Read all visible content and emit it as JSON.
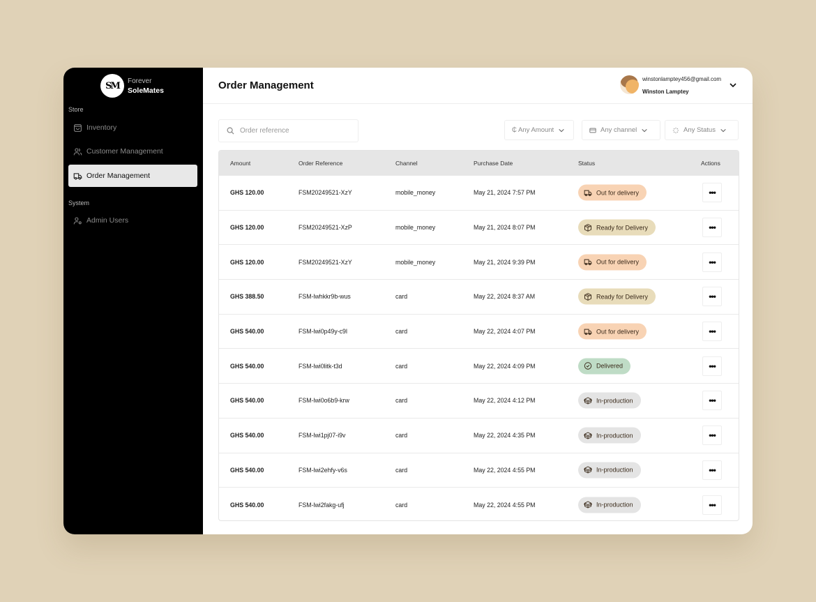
{
  "sidebar": {
    "brand_line1": "Forever",
    "brand_line2": "SoleMates",
    "logo_text": "SM",
    "sections": [
      {
        "label": "Store"
      },
      {
        "label": "System"
      }
    ],
    "items": [
      {
        "label": "Inventory",
        "icon": "shopping-bag-icon",
        "active": false
      },
      {
        "label": "Customer Management",
        "icon": "users-icon",
        "active": false
      },
      {
        "label": "Order Management",
        "icon": "truck-icon",
        "active": true
      },
      {
        "label": "Admin Users",
        "icon": "user-cog-icon",
        "active": false
      }
    ]
  },
  "header": {
    "title": "Order Management",
    "user": {
      "email": "winstonlamptey456@gmail.com",
      "name": "Winston Lamptey"
    }
  },
  "search": {
    "placeholder": "Order reference",
    "value": ""
  },
  "filters": [
    {
      "label": "₵ Any Amount",
      "icon": "cedi-icon"
    },
    {
      "label": "Any channel",
      "icon": "credit-card-icon"
    },
    {
      "label": "Any Status",
      "icon": "loader-icon"
    }
  ],
  "table": {
    "columns": [
      "Amount",
      "Order Reference",
      "Channel",
      "Purchase Date",
      "Status",
      "Actions"
    ],
    "rows": [
      {
        "amount": "GHS 120.00",
        "ref": "FSM20249521-XzY",
        "channel": "mobile_money",
        "date": "May 21, 2024 7:57 PM",
        "status": "Out for delivery"
      },
      {
        "amount": "GHS 120.00",
        "ref": "FSM20249521-XzP",
        "channel": "mobile_money",
        "date": "May 21, 2024 8:07 PM",
        "status": "Ready for Delivery"
      },
      {
        "amount": "GHS 120.00",
        "ref": "FSM20249521-XzY",
        "channel": "mobile_money",
        "date": "May 21, 2024 9:39 PM",
        "status": "Out for delivery"
      },
      {
        "amount": "GHS 388.50",
        "ref": "FSM-lwhkkr9b-wus",
        "channel": "card",
        "date": "May 22, 2024 8:37 AM",
        "status": "Ready for Delivery"
      },
      {
        "amount": "GHS 540.00",
        "ref": "FSM-lwi0p49y-c9l",
        "channel": "card",
        "date": "May 22, 2024 4:07 PM",
        "status": "Out for delivery"
      },
      {
        "amount": "GHS 540.00",
        "ref": "FSM-lwi0litk-t3d",
        "channel": "card",
        "date": "May 22, 2024 4:09 PM",
        "status": "Delivered"
      },
      {
        "amount": "GHS 540.00",
        "ref": "FSM-lwi0o6b9-krw",
        "channel": "card",
        "date": "May 22, 2024 4:12 PM",
        "status": "In-production"
      },
      {
        "amount": "GHS 540.00",
        "ref": "FSM-lwi1pj07-i9v",
        "channel": "card",
        "date": "May 22, 2024 4:35 PM",
        "status": "In-production"
      },
      {
        "amount": "GHS 540.00",
        "ref": "FSM-lwi2ehfy-v6s",
        "channel": "card",
        "date": "May 22, 2024 4:55 PM",
        "status": "In-production"
      },
      {
        "amount": "GHS 540.00",
        "ref": "FSM-lwi2fakg-ufj",
        "channel": "card",
        "date": "May 22, 2024 4:55 PM",
        "status": "In-production"
      }
    ],
    "actions_label": "•••"
  },
  "status_colors": {
    "Out for delivery": "#f8d3b4",
    "Ready for Delivery": "#e8dcba",
    "Delivered": "#bfdcc6",
    "In-production": "#e4e4e4"
  },
  "status_icons": {
    "Out for delivery": "truck-icon",
    "Ready for Delivery": "package-icon",
    "Delivered": "check-circle-icon",
    "In-production": "box-icon"
  }
}
